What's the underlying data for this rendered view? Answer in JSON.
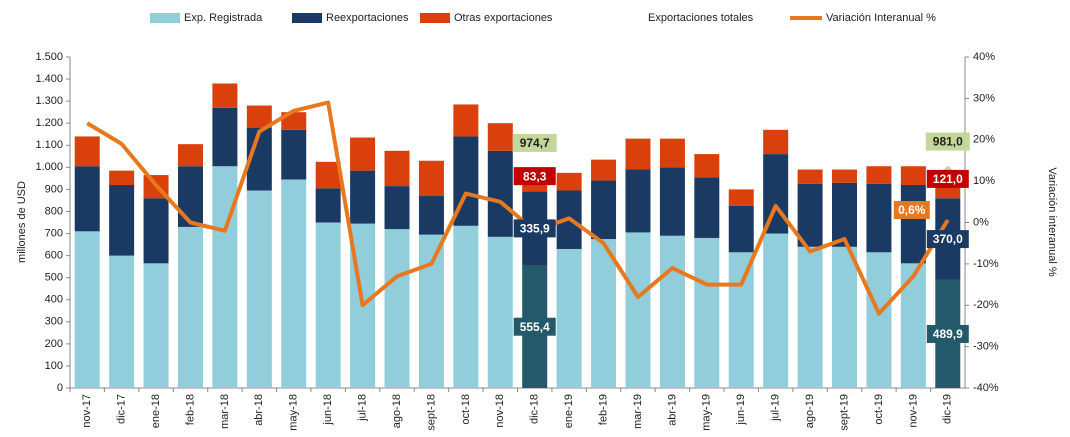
{
  "chart_data": {
    "type": "bar-line",
    "y_label": "millones de USD",
    "y2_label": "Variación interanual %",
    "categories": [
      "nov-17",
      "dic-17",
      "ene-18",
      "feb-18",
      "mar-18",
      "abr-18",
      "may-18",
      "jun-18",
      "jul-18",
      "ago-18",
      "sept-18",
      "oct-18",
      "nov-18",
      "dic-18",
      "ene-19",
      "feb-19",
      "mar-19",
      "abr-19",
      "may-19",
      "jun-19",
      "jul-19",
      "ago-19",
      "sept-19",
      "oct-19",
      "nov-19",
      "dic-19"
    ],
    "series": [
      {
        "name": "Exp. Registrada",
        "type": "bar",
        "color": "#92cddc",
        "label_color": "#23596a",
        "values": [
          710,
          600,
          565,
          730,
          1005,
          895,
          945,
          750,
          745,
          720,
          695,
          735,
          685,
          555.4,
          630,
          675,
          705,
          690,
          680,
          615,
          700,
          640,
          640,
          615,
          565,
          489.9
        ],
        "value_labels": [
          null,
          null,
          null,
          null,
          null,
          null,
          null,
          null,
          null,
          null,
          null,
          null,
          null,
          "555,4",
          null,
          null,
          null,
          null,
          null,
          null,
          null,
          null,
          null,
          null,
          null,
          "489,9"
        ]
      },
      {
        "name": "Reexportaciones",
        "type": "bar",
        "color": "#1b3a63",
        "label_color": "#1b3a63",
        "values": [
          295,
          320,
          295,
          275,
          265,
          285,
          225,
          155,
          240,
          195,
          175,
          405,
          390,
          335.9,
          265,
          265,
          285,
          310,
          275,
          210,
          360,
          285,
          290,
          310,
          355,
          370.0
        ],
        "value_labels": [
          null,
          null,
          null,
          null,
          null,
          null,
          null,
          null,
          null,
          null,
          null,
          null,
          null,
          "335,9",
          null,
          null,
          null,
          null,
          null,
          null,
          null,
          null,
          null,
          null,
          null,
          "370,0"
        ]
      },
      {
        "name": "Otras exportaciones",
        "type": "bar",
        "color": "#d9400b",
        "label_color": "#c00000",
        "values": [
          135,
          65,
          105,
          100,
          110,
          100,
          80,
          120,
          150,
          160,
          160,
          145,
          125,
          83.3,
          80,
          95,
          140,
          130,
          105,
          75,
          110,
          65,
          60,
          80,
          85,
          121.0
        ],
        "value_labels": [
          null,
          null,
          null,
          null,
          null,
          null,
          null,
          null,
          null,
          null,
          null,
          null,
          null,
          "83,3",
          null,
          null,
          null,
          null,
          null,
          null,
          null,
          null,
          null,
          null,
          null,
          "121,0"
        ]
      },
      {
        "name": "Variación Interanual %",
        "type": "line",
        "axis": "y2",
        "color": "#e8781e",
        "values": [
          24,
          19,
          9,
          0,
          -2,
          22,
          27,
          29,
          -20,
          -13,
          -10,
          7,
          5,
          -2,
          1,
          -5,
          -18,
          -11,
          -15,
          -15,
          4,
          -7,
          -4,
          -22,
          -13,
          0.6
        ],
        "value_labels": [
          null,
          null,
          null,
          null,
          null,
          null,
          null,
          null,
          null,
          null,
          null,
          null,
          null,
          null,
          null,
          null,
          null,
          null,
          null,
          null,
          null,
          null,
          null,
          null,
          null,
          "0,6%"
        ]
      }
    ],
    "totals": {
      "name": "Exportaciones totales",
      "color": "#c4d79b",
      "values": [
        null,
        null,
        null,
        null,
        null,
        null,
        null,
        null,
        null,
        null,
        null,
        null,
        null,
        974.7,
        null,
        null,
        null,
        null,
        null,
        null,
        null,
        null,
        null,
        null,
        null,
        981.0
      ],
      "value_labels": [
        null,
        null,
        null,
        null,
        null,
        null,
        null,
        null,
        null,
        null,
        null,
        null,
        null,
        "974,7",
        null,
        null,
        null,
        null,
        null,
        null,
        null,
        null,
        null,
        null,
        null,
        "981,0"
      ]
    },
    "ylim": [
      0,
      1500
    ],
    "yticks": [
      0,
      100,
      200,
      300,
      400,
      500,
      600,
      700,
      800,
      900,
      {
        "value": 1000,
        "label": "1.000"
      },
      {
        "value": 1100,
        "label": "1.100"
      },
      {
        "value": 1200,
        "label": "1.200"
      },
      {
        "value": 1300,
        "label": "1.300"
      },
      {
        "value": 1400,
        "label": "1.400"
      },
      {
        "value": 1500,
        "label": "1.500"
      }
    ],
    "y2lim": [
      -40,
      40
    ],
    "y2ticks": [
      {
        "value": -40,
        "label": "-40%"
      },
      {
        "value": -30,
        "label": "-30%"
      },
      {
        "value": -20,
        "label": "-20%"
      },
      {
        "value": -10,
        "label": "-10%"
      },
      {
        "value": 0,
        "label": "0%"
      },
      {
        "value": 10,
        "label": "10%"
      },
      {
        "value": 20,
        "label": "20%"
      },
      {
        "value": 30,
        "label": "30%"
      },
      {
        "value": 40,
        "label": "40%"
      }
    ]
  }
}
